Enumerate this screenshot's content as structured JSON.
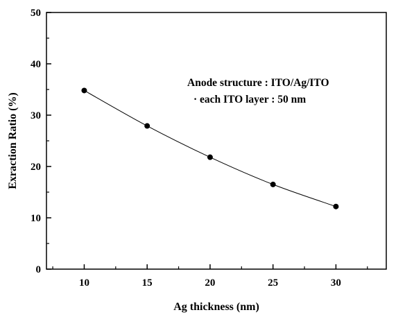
{
  "chart_data": {
    "type": "line",
    "xlabel": "Ag thickness (nm)",
    "ylabel": "Exraction Ratio (%)",
    "x": [
      10,
      15,
      20,
      25,
      30
    ],
    "series": [
      {
        "values": [
          34.8,
          27.9,
          21.8,
          16.5,
          12.2
        ]
      }
    ],
    "xlim": [
      7,
      34
    ],
    "ylim": [
      0,
      50
    ],
    "xticks": [
      10,
      15,
      20,
      25,
      30
    ],
    "yticks": [
      0,
      10,
      20,
      30,
      40,
      50
    ],
    "grid": false,
    "legend": "none",
    "annotations": [
      "Anode structure : ITO/Ag/ITO",
      "· each ITO layer : 50 nm"
    ],
    "colors": {
      "line": "#000000",
      "marker": "#000000",
      "axis": "#000000"
    }
  }
}
